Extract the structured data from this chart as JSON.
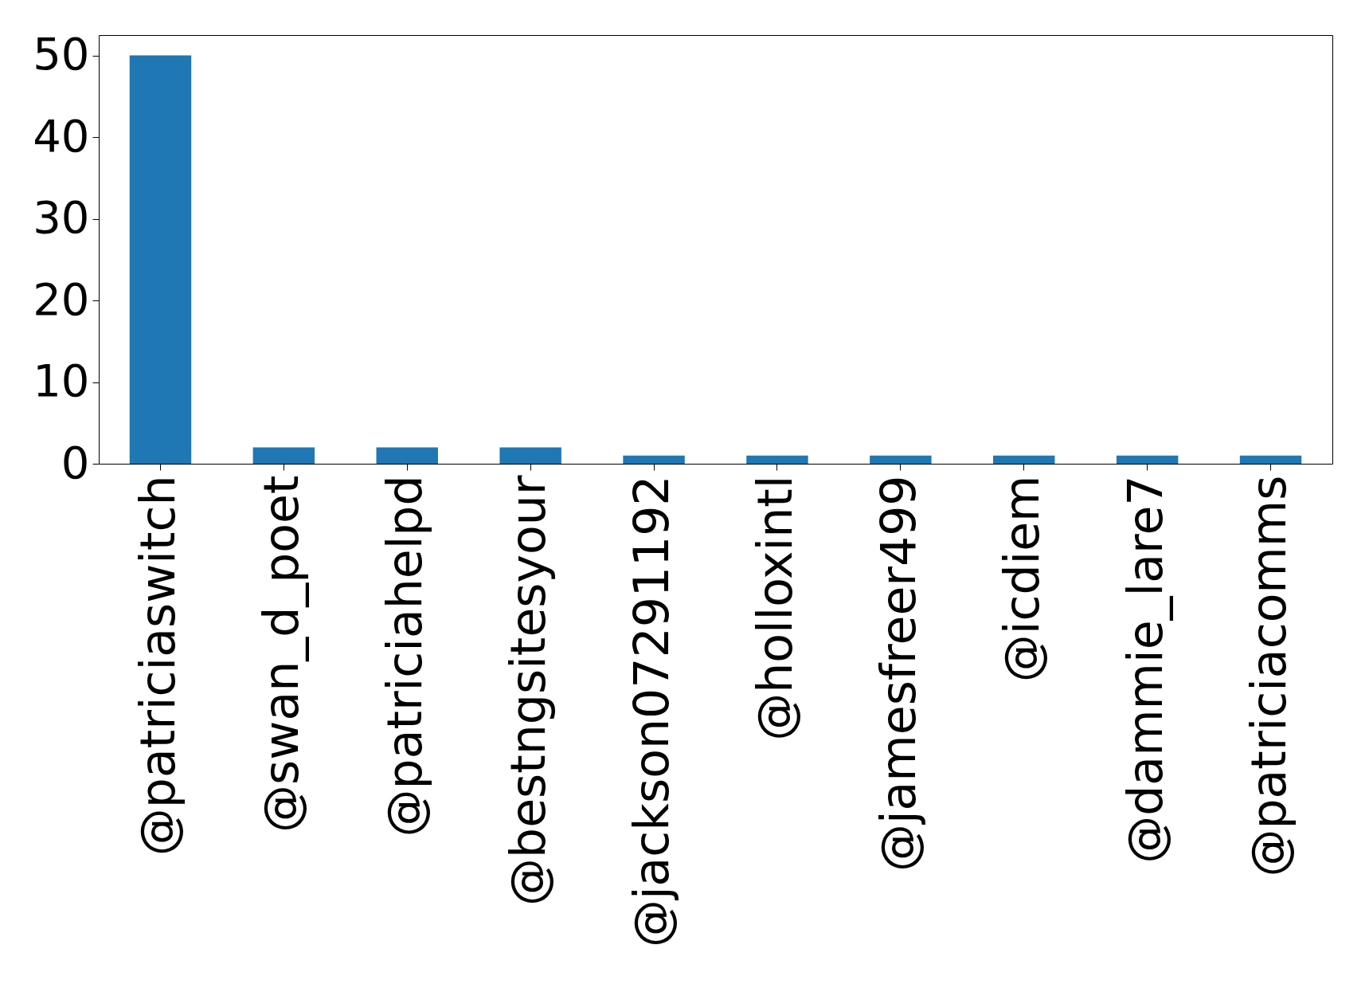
{
  "chart_data": {
    "type": "bar",
    "categories": [
      "@patriciaswitch",
      "@swan_d_poet",
      "@patriciahelpd",
      "@bestngsitesyour",
      "@jackson07291192",
      "@holloxintl",
      "@jamesfreer499",
      "@icdiem",
      "@dammie_lare7",
      "@patriciacomms"
    ],
    "values": [
      50,
      2,
      2,
      2,
      1,
      1,
      1,
      1,
      1,
      1
    ],
    "color": "#1f77b4",
    "ylim": [
      0,
      52.5
    ],
    "yticks": [
      0,
      10,
      20,
      30,
      40,
      50
    ],
    "grid": false
  }
}
